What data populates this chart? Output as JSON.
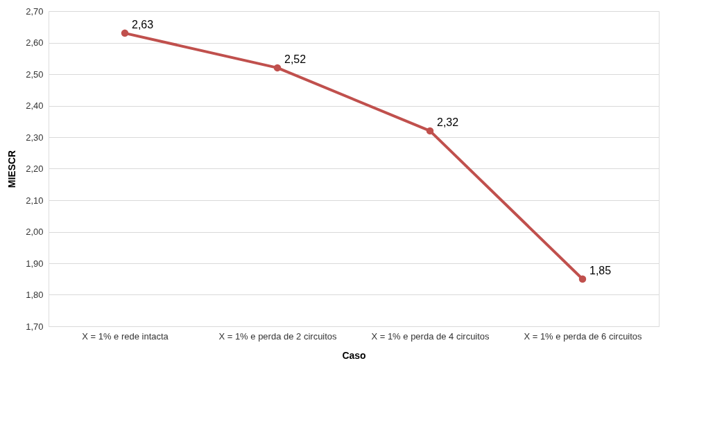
{
  "chart_data": {
    "type": "line",
    "xlabel": "Caso",
    "ylabel": "MIESCR",
    "categories": [
      "X = 1% e rede intacta",
      "X = 1% e perda de 2 circuitos",
      "X = 1% e perda de 4 circuitos",
      "X = 1% e perda de 6 circuitos"
    ],
    "series": [
      {
        "color": "#c0504d",
        "values": [
          2.63,
          2.52,
          2.32,
          1.85
        ],
        "value_labels": [
          "2,63",
          "2,52",
          "2,32",
          "1,85"
        ]
      }
    ],
    "ylim": [
      1.7,
      2.7
    ],
    "yticks": [
      {
        "value": 1.7,
        "label": "1,70"
      },
      {
        "value": 1.8,
        "label": "1,80"
      },
      {
        "value": 1.9,
        "label": "1,90"
      },
      {
        "value": 2.0,
        "label": "2,00"
      },
      {
        "value": 2.1,
        "label": "2,10"
      },
      {
        "value": 2.2,
        "label": "2,20"
      },
      {
        "value": 2.3,
        "label": "2,30"
      },
      {
        "value": 2.4,
        "label": "2,40"
      },
      {
        "value": 2.5,
        "label": "2,50"
      },
      {
        "value": 2.6,
        "label": "2,60"
      },
      {
        "value": 2.7,
        "label": "2,70"
      }
    ],
    "grid": "y",
    "marker": "circle",
    "line_style": "solid"
  }
}
